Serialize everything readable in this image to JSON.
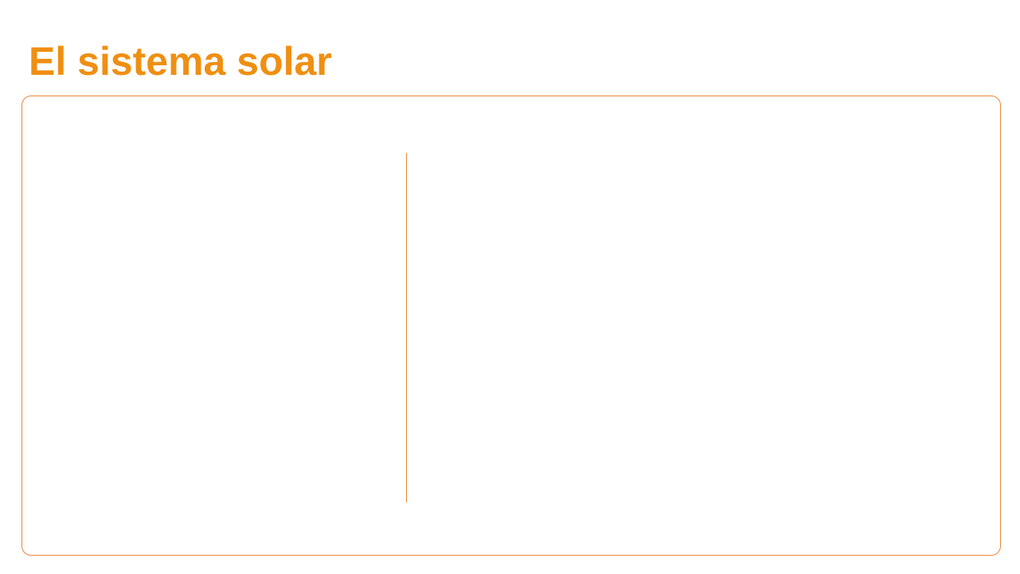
{
  "slide": {
    "title": "El sistema solar"
  },
  "colors": {
    "title": "#ef8f12",
    "frame_border": "#e9863a",
    "background": "#ffffff"
  }
}
